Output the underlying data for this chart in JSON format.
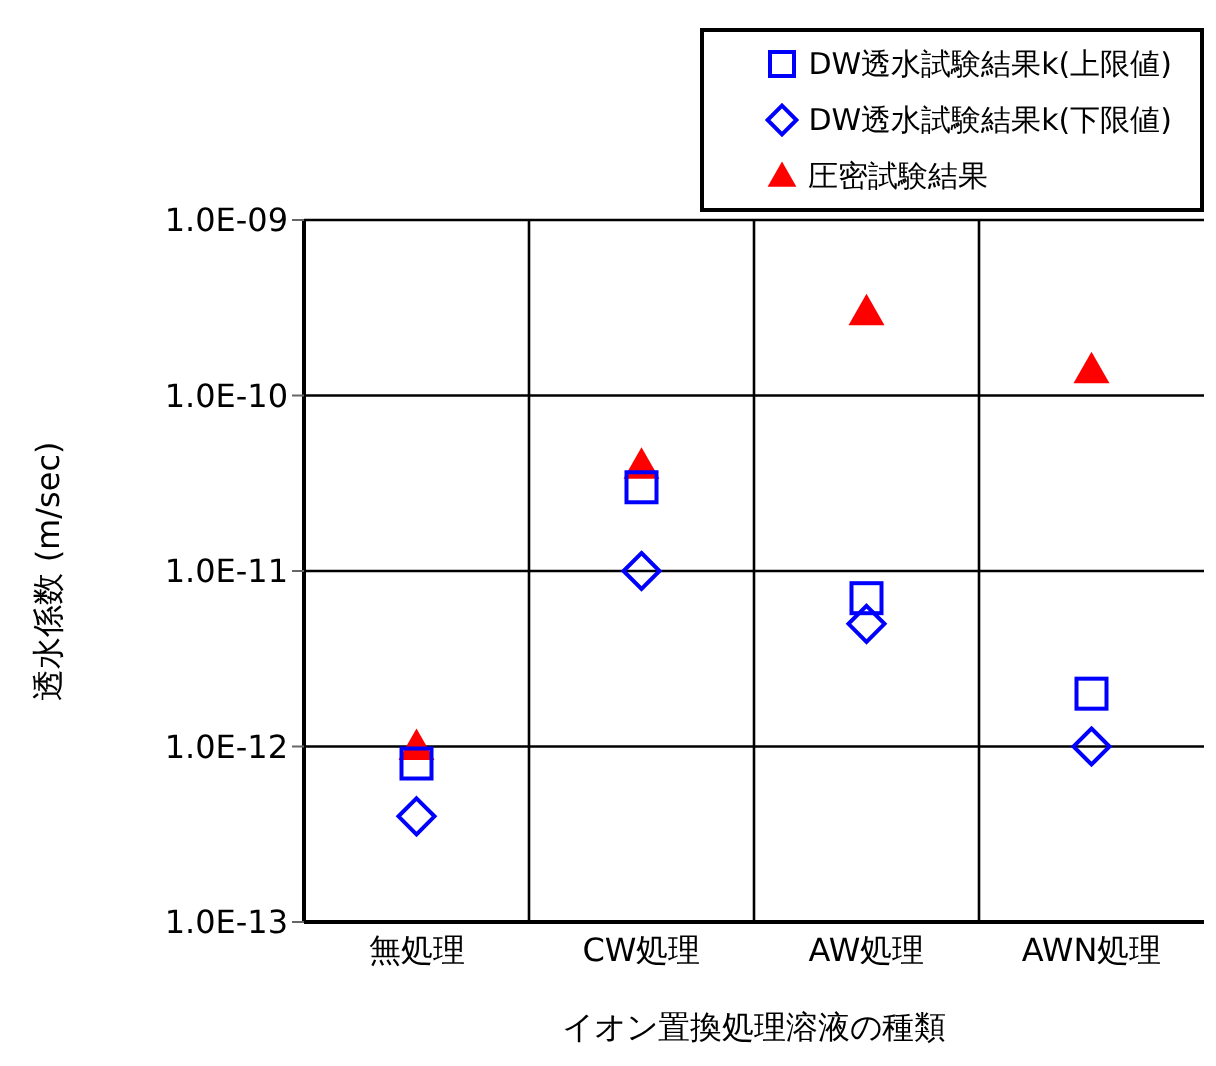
{
  "chart_data": {
    "type": "scatter",
    "xlabel": "イオン置換処理溶液の種類",
    "ylabel": "透水係数 (m/sec)",
    "categories": [
      "無処理",
      "CW処理",
      "AW処理",
      "AWN処理"
    ],
    "series": [
      {
        "name": "DW透水試験結果k(上限値)",
        "color": "#0000ff",
        "marker": "square",
        "values": [
          8e-13,
          3e-11,
          7e-12,
          2e-12
        ]
      },
      {
        "name": "DW透水試験結果k(下限値)",
        "color": "#0000ff",
        "marker": "diamond",
        "values": [
          4e-13,
          1e-11,
          5e-12,
          1e-12
        ]
      },
      {
        "name": "圧密試験結果",
        "color": "#ff0000",
        "marker": "triangle",
        "values": [
          1e-12,
          4e-11,
          3e-10,
          1.4e-10
        ]
      }
    ],
    "log": "y",
    "ylim": [
      1e-13,
      1e-09
    ],
    "yticks": [
      {
        "value": 1e-13,
        "label": "1.0E-13"
      },
      {
        "value": 1e-12,
        "label": "1.0E-12"
      },
      {
        "value": 1e-11,
        "label": "1.0E-11"
      },
      {
        "value": 1e-10,
        "label": "1.0E-10"
      },
      {
        "value": 1e-09,
        "label": "1.0E-09"
      }
    ],
    "grid": true,
    "legend": "top right"
  }
}
